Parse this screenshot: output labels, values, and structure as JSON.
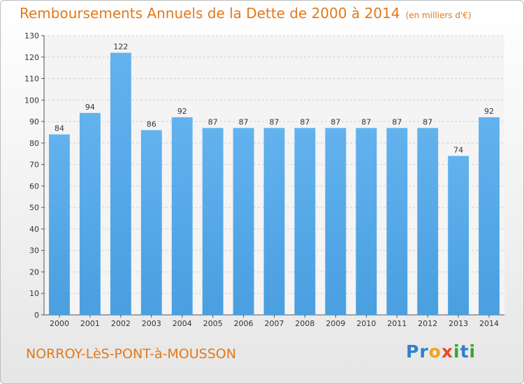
{
  "title": "Remboursements Annuels de la Dette de 2000 à 2014",
  "unit_note": "(en milliers d'€)",
  "commune": "NORROY-LèS-PONT-à-MOUSSON",
  "logo": "Proxiti",
  "colors": {
    "bar": "#4a9fe0",
    "bar_top": "#62b2ee",
    "title": "#e3791a",
    "grid": "#d0d0d0"
  },
  "chart_data": {
    "type": "bar",
    "title": "Remboursements Annuels de la Dette de 2000 à 2014",
    "categories": [
      "2000",
      "2001",
      "2002",
      "2003",
      "2004",
      "2005",
      "2006",
      "2007",
      "2008",
      "2009",
      "2010",
      "2011",
      "2012",
      "2013",
      "2014"
    ],
    "values": [
      84,
      94,
      122,
      86,
      92,
      87,
      87,
      87,
      87,
      87,
      87,
      87,
      87,
      74,
      92
    ],
    "ylim": [
      0,
      130
    ],
    "yticks": [
      0,
      10,
      20,
      30,
      40,
      50,
      60,
      70,
      80,
      90,
      100,
      110,
      120,
      130
    ],
    "grid": true,
    "data_labels": true
  }
}
